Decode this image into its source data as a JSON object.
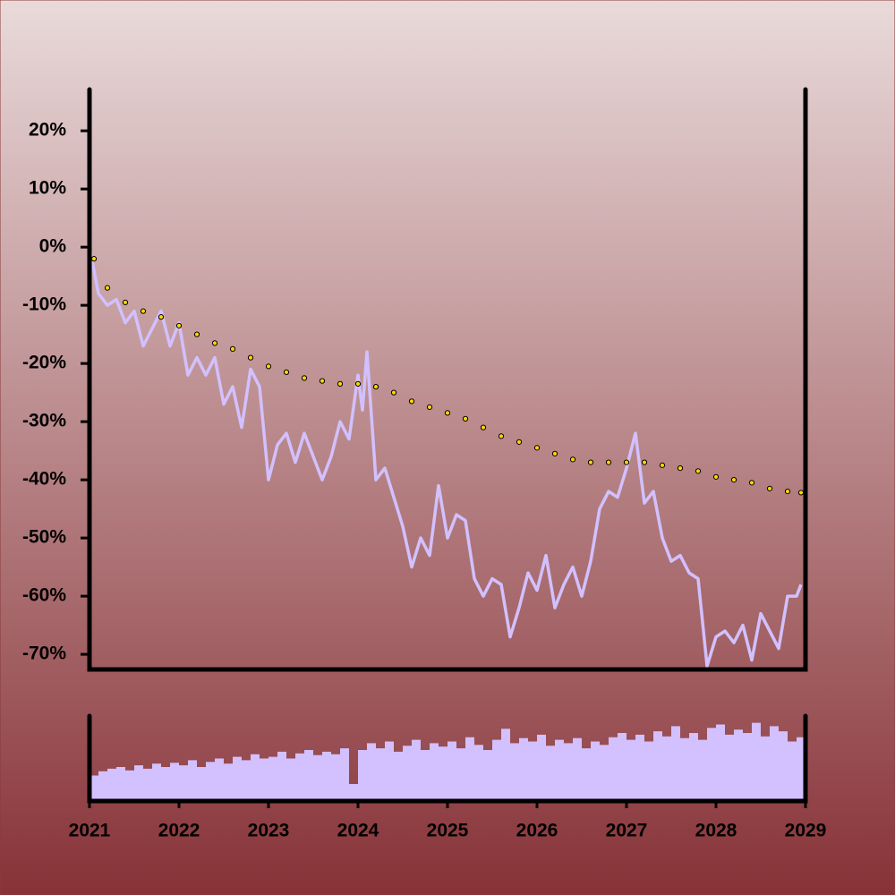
{
  "chart_data": [
    {
      "type": "line",
      "xlim": [
        2021,
        2029
      ],
      "ylim": [
        -72.6,
        27.1
      ],
      "yticks": [
        {
          "value": 20,
          "label": "20%"
        },
        {
          "value": 10,
          "label": "10%"
        },
        {
          "value": 0,
          "label": "0%"
        },
        {
          "value": -10,
          "label": "-10%"
        },
        {
          "value": -20,
          "label": "-20%"
        },
        {
          "value": -30,
          "label": "-30%"
        },
        {
          "value": -40,
          "label": "-40%"
        },
        {
          "value": -50,
          "label": "-50%"
        },
        {
          "value": -60,
          "label": "-60%"
        },
        {
          "value": -70,
          "label": "-70%"
        }
      ],
      "series": [
        {
          "color": "#d2c0ff",
          "marker": "none",
          "x": [
            2021.0,
            2021.1,
            2021.2,
            2021.3,
            2021.4,
            2021.5,
            2021.6,
            2021.7,
            2021.8,
            2021.9,
            2022.0,
            2022.1,
            2022.2,
            2022.3,
            2022.4,
            2022.5,
            2022.6,
            2022.7,
            2022.8,
            2022.9,
            2023.0,
            2023.1,
            2023.2,
            2023.3,
            2023.4,
            2023.5,
            2023.6,
            2023.7,
            2023.8,
            2023.9,
            2024.0,
            2024.05,
            2024.1,
            2024.2,
            2024.3,
            2024.4,
            2024.5,
            2024.6,
            2024.7,
            2024.8,
            2024.9,
            2025.0,
            2025.1,
            2025.2,
            2025.3,
            2025.4,
            2025.5,
            2025.6,
            2025.7,
            2025.8,
            2025.9,
            2026.0,
            2026.1,
            2026.2,
            2026.3,
            2026.4,
            2026.5,
            2026.6,
            2026.7,
            2026.8,
            2026.9,
            2027.0,
            2027.1,
            2027.2,
            2027.3,
            2027.4,
            2027.5,
            2027.6,
            2027.7,
            2027.8,
            2027.9,
            2028.0,
            2028.1,
            2028.2,
            2028.3,
            2028.4,
            2028.5,
            2028.6,
            2028.7,
            2028.8,
            2028.9,
            2028.95
          ],
          "values": [
            0,
            -8,
            -10,
            -9,
            -13,
            -11,
            -17,
            -14,
            -11,
            -17,
            -13,
            -22,
            -19,
            -22,
            -19,
            -27,
            -24,
            -31,
            -21,
            -24,
            -40,
            -34,
            -32,
            -37,
            -32,
            -36,
            -40,
            -36,
            -30,
            -33,
            -22,
            -28,
            -18,
            -40,
            -38,
            -43,
            -48,
            -55,
            -50,
            -53,
            -41,
            -50,
            -46,
            -47,
            -57,
            -60,
            -57,
            -58,
            -67,
            -62,
            -56,
            -59,
            -53,
            -62,
            -58,
            -55,
            -60,
            -54,
            -45,
            -42,
            -43,
            -38,
            -32,
            -44,
            -42,
            -50,
            -54,
            -53,
            -56,
            -57,
            -72,
            -67,
            -66,
            -68,
            -65,
            -71,
            -63,
            -66,
            -69,
            -60,
            -60,
            -58
          ]
        },
        {
          "color": "#ffd700",
          "marker": "dot",
          "x": [
            2021.05,
            2021.2,
            2021.4,
            2021.6,
            2021.8,
            2022.0,
            2022.2,
            2022.4,
            2022.6,
            2022.8,
            2023.0,
            2023.2,
            2023.4,
            2023.6,
            2023.8,
            2024.0,
            2024.2,
            2024.4,
            2024.6,
            2024.8,
            2025.0,
            2025.2,
            2025.4,
            2025.6,
            2025.8,
            2026.0,
            2026.2,
            2026.4,
            2026.6,
            2026.8,
            2027.0,
            2027.2,
            2027.4,
            2027.6,
            2027.8,
            2028.0,
            2028.2,
            2028.4,
            2028.6,
            2028.8,
            2028.95
          ],
          "values": [
            -2,
            -7,
            -9.5,
            -11,
            -12,
            -13.5,
            -15,
            -16.5,
            -17.5,
            -19,
            -20.5,
            -21.5,
            -22.5,
            -23,
            -23.5,
            -23.5,
            -24,
            -25,
            -26.5,
            -27.5,
            -28.5,
            -29.5,
            -31,
            -32.5,
            -33.5,
            -34.5,
            -35.5,
            -36.5,
            -37,
            -37,
            -37,
            -37,
            -37.5,
            -38,
            -38.5,
            -39.5,
            -40,
            -40.5,
            -41.5,
            -42,
            -42.2
          ]
        }
      ]
    },
    {
      "type": "bar",
      "color": "#d2c0ff",
      "xlim": [
        2021,
        2029
      ],
      "ylim": [
        0,
        100
      ],
      "xticks": [
        2021,
        2022,
        2023,
        2024,
        2025,
        2026,
        2027,
        2028,
        2029
      ],
      "x": [
        2021.05,
        2021.15,
        2021.25,
        2021.35,
        2021.45,
        2021.55,
        2021.65,
        2021.75,
        2021.85,
        2021.95,
        2022.05,
        2022.15,
        2022.25,
        2022.35,
        2022.45,
        2022.55,
        2022.65,
        2022.75,
        2022.85,
        2022.95,
        2023.05,
        2023.15,
        2023.25,
        2023.35,
        2023.45,
        2023.55,
        2023.65,
        2023.75,
        2023.85,
        2023.95,
        2024.05,
        2024.15,
        2024.25,
        2024.35,
        2024.45,
        2024.55,
        2024.65,
        2024.75,
        2024.85,
        2024.95,
        2025.05,
        2025.15,
        2025.25,
        2025.35,
        2025.45,
        2025.55,
        2025.65,
        2025.75,
        2025.85,
        2025.95,
        2026.05,
        2026.15,
        2026.25,
        2026.35,
        2026.45,
        2026.55,
        2026.65,
        2026.75,
        2026.85,
        2026.95,
        2027.05,
        2027.15,
        2027.25,
        2027.35,
        2027.45,
        2027.55,
        2027.65,
        2027.75,
        2027.85,
        2027.95,
        2028.05,
        2028.15,
        2028.25,
        2028.35,
        2028.45,
        2028.55,
        2028.65,
        2028.75,
        2028.85,
        2028.95
      ],
      "values": [
        30,
        35,
        38,
        40,
        36,
        42,
        38,
        44,
        40,
        45,
        42,
        48,
        40,
        46,
        50,
        44,
        52,
        48,
        55,
        50,
        52,
        58,
        50,
        56,
        60,
        54,
        58,
        55,
        62,
        20,
        60,
        68,
        62,
        70,
        58,
        65,
        72,
        60,
        68,
        64,
        70,
        62,
        75,
        66,
        60,
        72,
        85,
        68,
        74,
        70,
        78,
        65,
        72,
        68,
        74,
        62,
        70,
        66,
        75,
        80,
        72,
        78,
        70,
        82,
        76,
        88,
        74,
        80,
        72,
        86,
        90,
        78,
        84,
        80,
        92,
        76,
        88,
        82,
        70,
        75
      ]
    }
  ]
}
